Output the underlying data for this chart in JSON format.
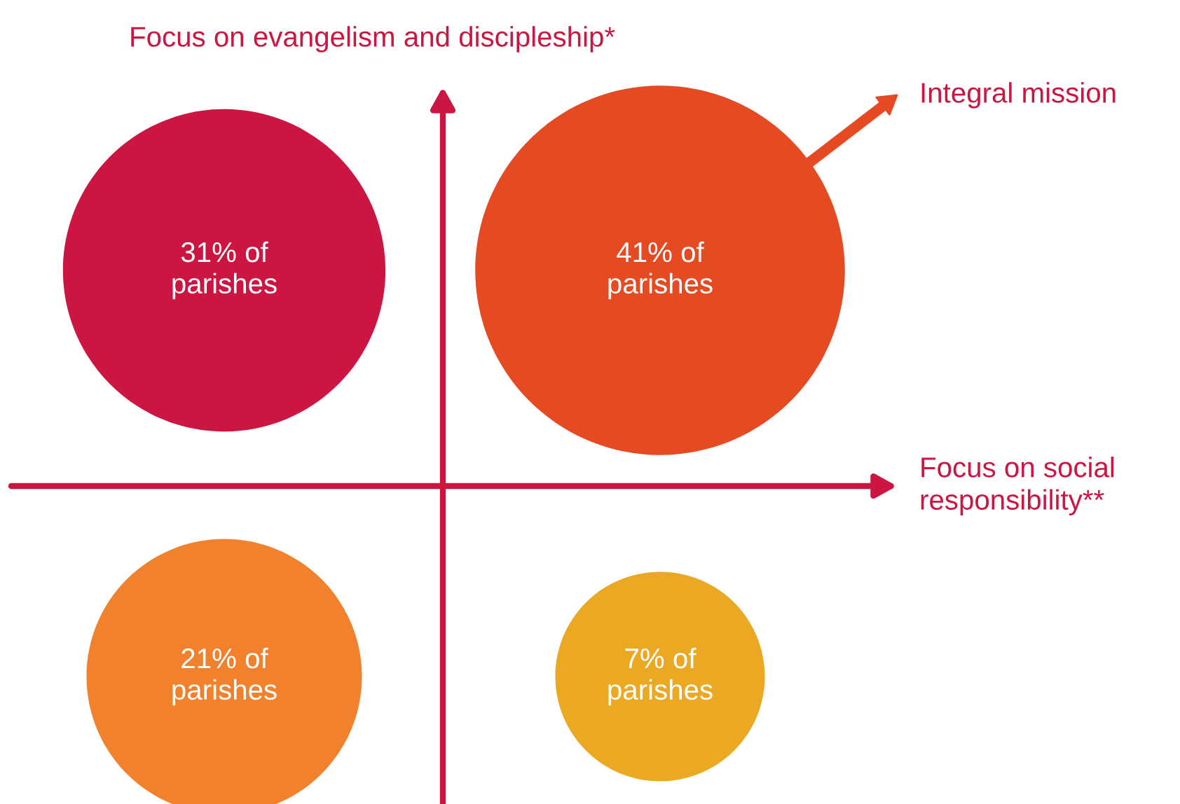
{
  "chart_data": {
    "type": "other",
    "ylabel": "Focus on evangelism and discipleship*",
    "xlabel": "Focus on social responsibility**",
    "values": [
      31,
      41,
      21,
      7
    ],
    "value_labels": [
      "31% of\nparishes",
      "41% of\nparishes",
      "21% of\nparishes",
      "7% of\nparishes"
    ],
    "colors": [
      "#cc1540",
      "#e64a22",
      "#f2812d",
      "#eaa823"
    ],
    "annotations": [
      "Integral mission"
    ]
  }
}
